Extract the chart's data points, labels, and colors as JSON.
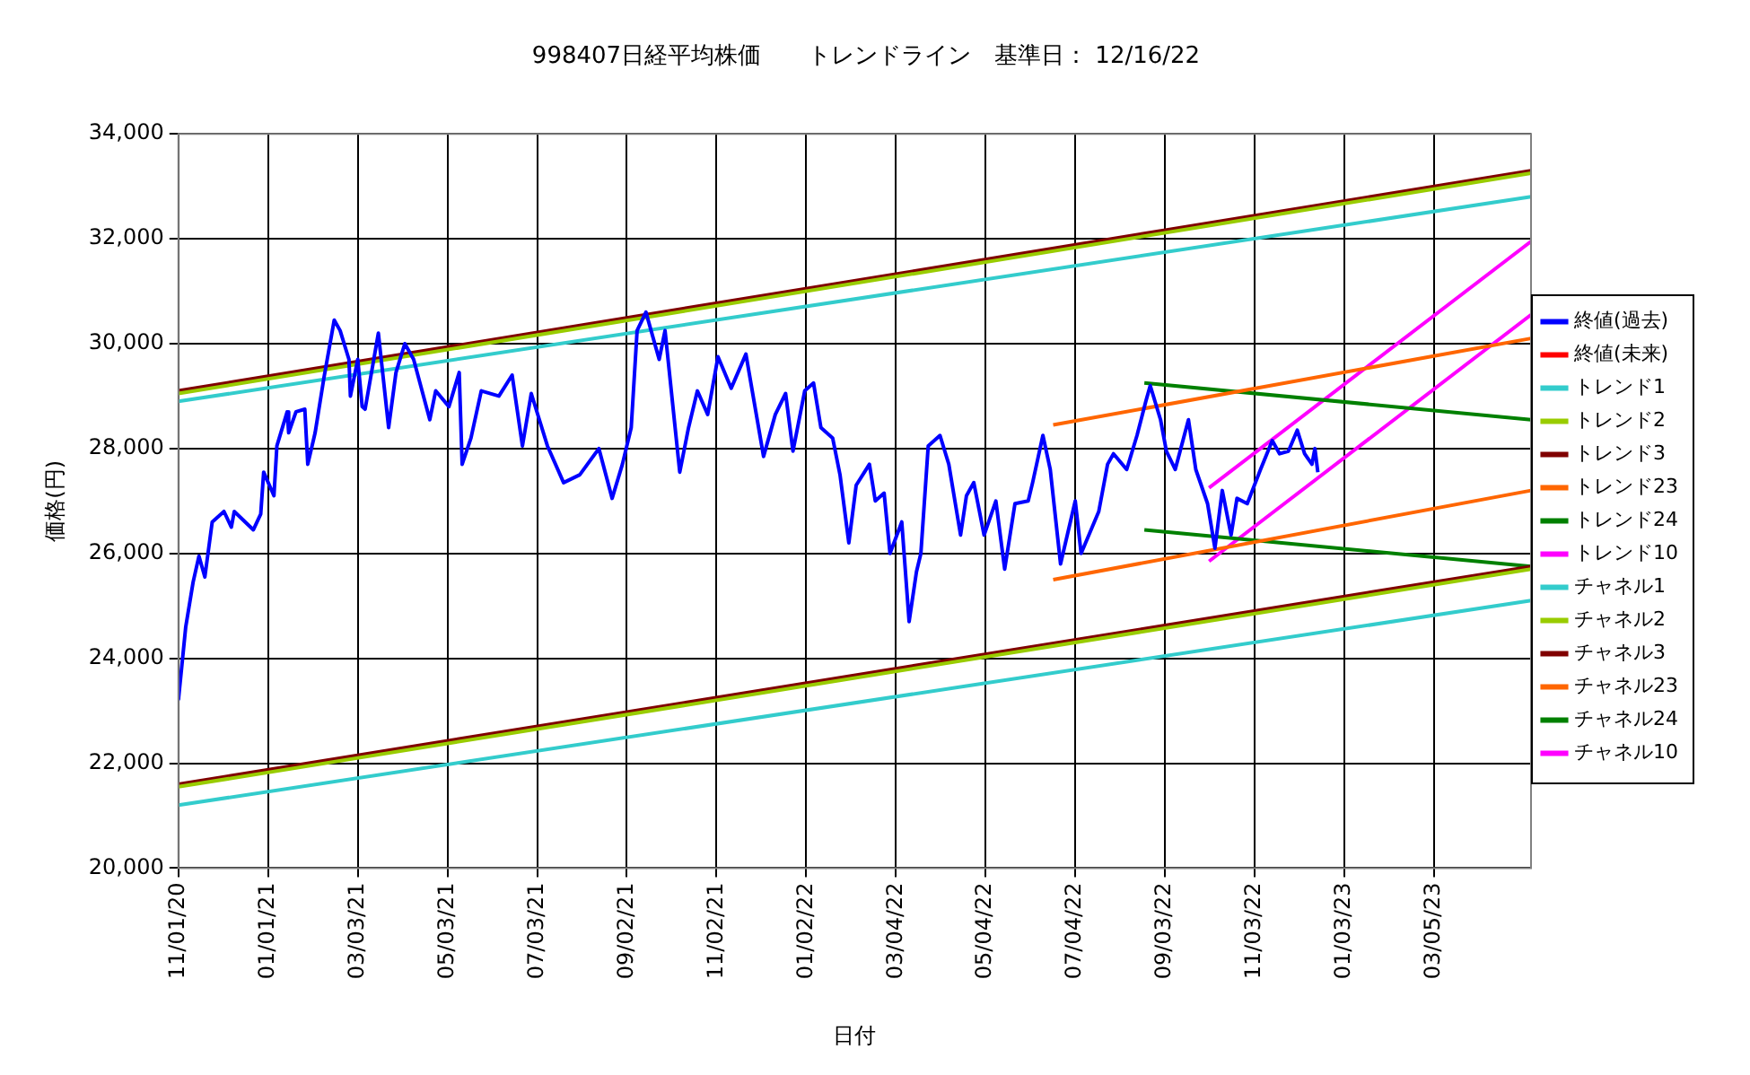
{
  "chart_data": {
    "type": "line",
    "title": "998407日経平均株価　　トレンドライン　基準日： 12/16/22",
    "xlabel": "日付",
    "ylabel": "価格(円)",
    "xlim": [
      "2020-11-01",
      "2023-05-10"
    ],
    "xticks": [
      {
        "value": "2020-11-01",
        "label": "11/01/20"
      },
      {
        "value": "2021-01-01",
        "label": "01/01/21"
      },
      {
        "value": "2021-03-03",
        "label": "03/03/21"
      },
      {
        "value": "2021-05-03",
        "label": "05/03/21"
      },
      {
        "value": "2021-07-03",
        "label": "07/03/21"
      },
      {
        "value": "2021-09-02",
        "label": "09/02/21"
      },
      {
        "value": "2021-11-02",
        "label": "11/02/21"
      },
      {
        "value": "2022-01-02",
        "label": "01/02/22"
      },
      {
        "value": "2022-03-04",
        "label": "03/04/22"
      },
      {
        "value": "2022-05-04",
        "label": "05/04/22"
      },
      {
        "value": "2022-07-04",
        "label": "07/04/22"
      },
      {
        "value": "2022-09-03",
        "label": "09/03/22"
      },
      {
        "value": "2022-11-03",
        "label": "11/03/22"
      },
      {
        "value": "2023-01-03",
        "label": "01/03/23"
      },
      {
        "value": "2023-03-05",
        "label": "03/05/23"
      }
    ],
    "ylim": [
      20000,
      34000
    ],
    "yticks": [
      {
        "value": 20000,
        "label": "20,000"
      },
      {
        "value": 22000,
        "label": "22,000"
      },
      {
        "value": 24000,
        "label": "24,000"
      },
      {
        "value": 26000,
        "label": "26,000"
      },
      {
        "value": 28000,
        "label": "28,000"
      },
      {
        "value": 30000,
        "label": "30,000"
      },
      {
        "value": 32000,
        "label": "32,000"
      },
      {
        "value": 34000,
        "label": "34,000"
      }
    ],
    "grid": true,
    "legend": "right",
    "marker": "none",
    "line_style": "solid",
    "series": [
      {
        "name": "終値(過去)",
        "color": "#0000ff",
        "x": [
          "2020-11-01",
          "2020-11-06",
          "2020-11-11",
          "2020-11-15",
          "2020-11-19",
          "2020-11-24",
          "2020-12-02",
          "2020-12-07",
          "2020-12-09",
          "2020-12-22",
          "2020-12-27",
          "2020-12-29",
          "2021-01-05",
          "2021-01-07",
          "2021-01-14",
          "2021-01-15",
          "2021-01-20",
          "2021-01-26",
          "2021-01-28",
          "2021-02-02",
          "2021-02-08",
          "2021-02-15",
          "2021-02-19",
          "2021-02-25",
          "2021-02-26",
          "2021-03-03",
          "2021-03-06",
          "2021-03-08",
          "2021-03-17",
          "2021-03-24",
          "2021-03-29",
          "2021-04-04",
          "2021-04-10",
          "2021-04-21",
          "2021-04-25",
          "2021-05-04",
          "2021-05-11",
          "2021-05-13",
          "2021-05-19",
          "2021-05-26",
          "2021-06-07",
          "2021-06-16",
          "2021-06-23",
          "2021-06-29",
          "2021-07-10",
          "2021-07-21",
          "2021-08-01",
          "2021-08-14",
          "2021-08-23",
          "2021-08-30",
          "2021-09-05",
          "2021-09-09",
          "2021-09-15",
          "2021-09-24",
          "2021-09-28",
          "2021-10-08",
          "2021-10-14",
          "2021-10-20",
          "2021-10-27",
          "2021-11-03",
          "2021-11-12",
          "2021-11-22",
          "2021-12-04",
          "2021-12-12",
          "2021-12-19",
          "2021-12-24",
          "2022-01-01",
          "2022-01-07",
          "2022-01-12",
          "2022-01-20",
          "2022-01-25",
          "2022-01-31",
          "2022-02-05",
          "2022-02-14",
          "2022-02-18",
          "2022-02-24",
          "2022-02-28",
          "2022-03-08",
          "2022-03-13",
          "2022-03-18",
          "2022-03-21",
          "2022-03-26",
          "2022-04-03",
          "2022-04-09",
          "2022-04-17",
          "2022-04-21",
          "2022-04-26",
          "2022-05-03",
          "2022-05-11",
          "2022-05-17",
          "2022-05-24",
          "2022-06-02",
          "2022-06-05",
          "2022-06-12",
          "2022-06-17",
          "2022-06-24",
          "2022-07-04",
          "2022-07-08",
          "2022-07-20",
          "2022-07-26",
          "2022-07-30",
          "2022-08-08",
          "2022-08-15",
          "2022-08-21",
          "2022-08-24",
          "2022-08-31",
          "2022-09-04",
          "2022-09-10",
          "2022-09-19",
          "2022-09-24",
          "2022-10-02",
          "2022-10-07",
          "2022-10-12",
          "2022-10-18",
          "2022-10-22",
          "2022-10-29",
          "2022-11-07",
          "2022-11-15",
          "2022-11-20",
          "2022-11-26",
          "2022-12-02",
          "2022-12-07",
          "2022-12-12",
          "2022-12-14",
          "2022-12-16"
        ],
        "values": [
          23200,
          24600,
          25450,
          25950,
          25550,
          26600,
          26800,
          26500,
          26800,
          26450,
          26750,
          27550,
          27100,
          28050,
          28700,
          28300,
          28700,
          28750,
          27700,
          28300,
          29350,
          30450,
          30250,
          29700,
          29000,
          29700,
          28800,
          28750,
          30200,
          28400,
          29450,
          30000,
          29700,
          28550,
          29100,
          28800,
          29450,
          27700,
          28200,
          29100,
          29000,
          29400,
          28050,
          29050,
          28050,
          27350,
          27500,
          28000,
          27050,
          27700,
          28400,
          30250,
          30600,
          29700,
          30250,
          27550,
          28400,
          29100,
          28650,
          29750,
          29150,
          29800,
          27850,
          28650,
          29050,
          27950,
          29100,
          29250,
          28400,
          28200,
          27500,
          26200,
          27300,
          27700,
          27000,
          27150,
          26000,
          26600,
          24700,
          25650,
          26000,
          28050,
          28250,
          27700,
          26350,
          27100,
          27350,
          26350,
          27000,
          25700,
          26950,
          27000,
          27350,
          28250,
          27600,
          25800,
          27000,
          26000,
          26800,
          27700,
          27900,
          27600,
          28250,
          28900,
          29200,
          28550,
          27950,
          27600,
          28550,
          27600,
          26950,
          26100,
          27200,
          26350,
          27050,
          26950,
          27600,
          28150,
          27900,
          27950,
          28350,
          27900,
          27700,
          28000,
          27550
        ]
      },
      {
        "name": "終値(未来)",
        "color": "#ff0000"
      },
      {
        "name": "トレンド1",
        "color": "#33cccc",
        "x": [
          "2020-11-01",
          "2023-05-10"
        ],
        "values": [
          28900,
          32800
        ]
      },
      {
        "name": "トレンド2",
        "color": "#99cc00",
        "x": [
          "2020-11-01",
          "2023-05-10"
        ],
        "values": [
          29050,
          33250
        ]
      },
      {
        "name": "トレンド3",
        "color": "#800000",
        "x": [
          "2020-11-01",
          "2023-05-10"
        ],
        "values": [
          29100,
          33300
        ]
      },
      {
        "name": "トレンド23",
        "color": "#ff6600",
        "x": [
          "2022-06-19",
          "2023-05-10"
        ],
        "values": [
          28450,
          30100
        ]
      },
      {
        "name": "トレンド24",
        "color": "#008000",
        "x": [
          "2022-08-20",
          "2023-05-10"
        ],
        "values": [
          29250,
          28550
        ]
      },
      {
        "name": "トレンド10",
        "color": "#ff00ff",
        "x": [
          "2022-10-03",
          "2023-05-10"
        ],
        "values": [
          27250,
          31950
        ]
      },
      {
        "name": "チャネル1",
        "color": "#33cccc",
        "x": [
          "2020-11-01",
          "2023-05-10"
        ],
        "values": [
          21200,
          25100
        ]
      },
      {
        "name": "チャネル2",
        "color": "#99cc00",
        "x": [
          "2020-11-01",
          "2023-05-10"
        ],
        "values": [
          21550,
          25700
        ]
      },
      {
        "name": "チャネル3",
        "color": "#800000",
        "x": [
          "2020-11-01",
          "2023-05-10"
        ],
        "values": [
          21600,
          25750
        ]
      },
      {
        "name": "チャネル23",
        "color": "#ff6600",
        "x": [
          "2022-06-19",
          "2023-05-10"
        ],
        "values": [
          25500,
          27200
        ]
      },
      {
        "name": "チャネル24",
        "color": "#008000",
        "x": [
          "2022-08-20",
          "2023-05-10"
        ],
        "values": [
          26450,
          25750
        ]
      },
      {
        "name": "チャネル10",
        "color": "#ff00ff",
        "x": [
          "2022-10-03",
          "2023-05-10"
        ],
        "values": [
          25850,
          30550
        ]
      }
    ]
  }
}
